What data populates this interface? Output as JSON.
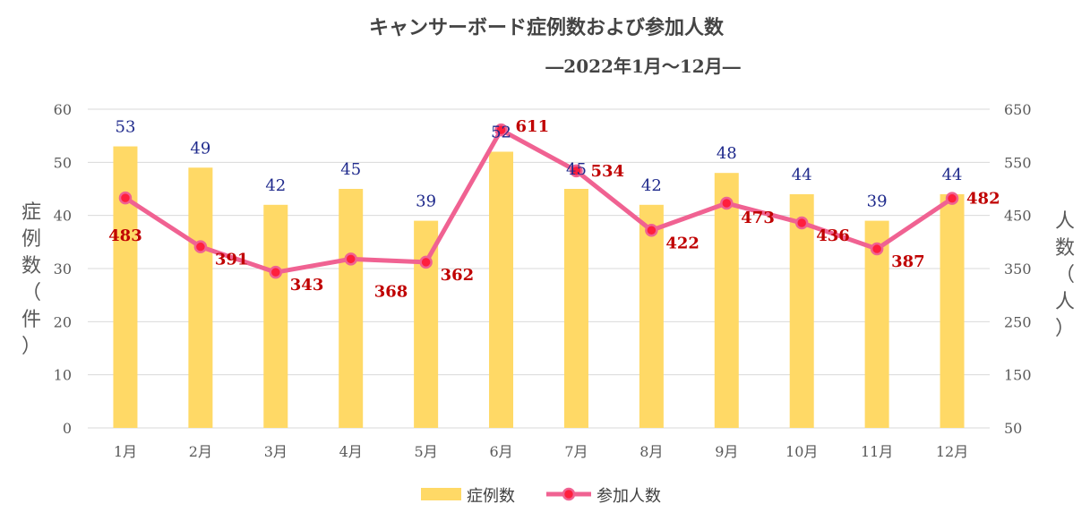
{
  "chart_data": {
    "type": "bar+line",
    "title": "キャンサーボード症例数および参加人数",
    "subtitle": "―2022年1月～12月―",
    "categories": [
      "1月",
      "2月",
      "3月",
      "4月",
      "5月",
      "6月",
      "7月",
      "8月",
      "9月",
      "10月",
      "11月",
      "12月"
    ],
    "series": [
      {
        "name": "症例数",
        "type": "bar",
        "axis": "left",
        "values": [
          53,
          49,
          42,
          45,
          39,
          52,
          45,
          42,
          48,
          44,
          39,
          44
        ]
      },
      {
        "name": "参加人数",
        "type": "line",
        "axis": "right",
        "values": [
          483,
          391,
          343,
          368,
          362,
          611,
          534,
          422,
          473,
          436,
          387,
          482
        ]
      }
    ],
    "ylabel_left": "症例数（件）",
    "ylabel_right": "人数（人）",
    "ylim_left": [
      0,
      60
    ],
    "ylim_right": [
      50,
      650
    ],
    "yticks_left": [
      0,
      10,
      20,
      30,
      40,
      50,
      60
    ],
    "yticks_right": [
      50,
      150,
      250,
      350,
      450,
      550,
      650
    ],
    "grid": true,
    "legend": "bottom",
    "colors": {
      "bar": "#ffd966",
      "line": "#f06292",
      "marker_fill": "#ff1f3d",
      "bar_label": "#1f2a8c",
      "line_label": "#c00000",
      "grid": "#d9d9d9",
      "text": "#595959"
    }
  }
}
